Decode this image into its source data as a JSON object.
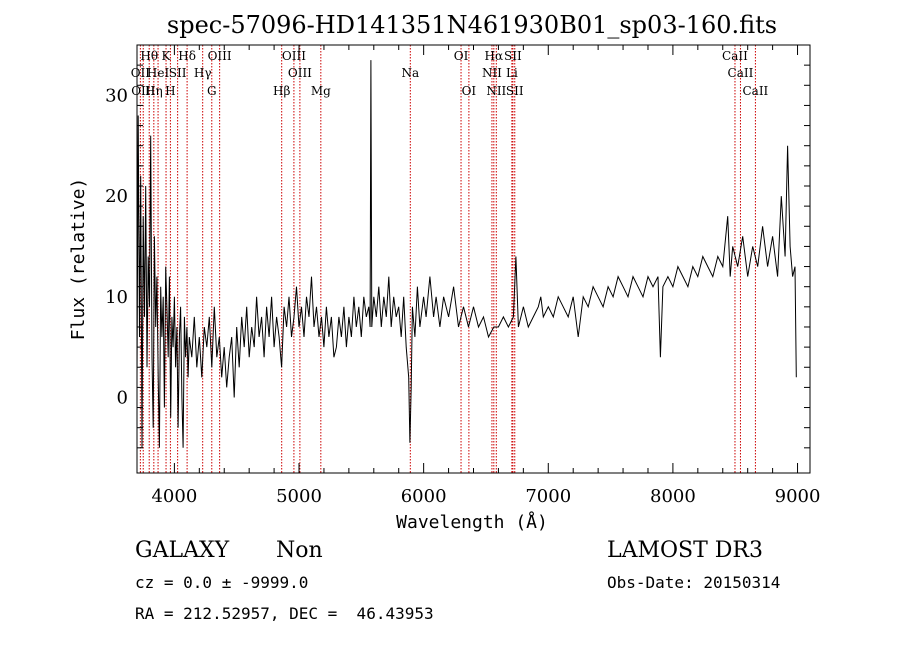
{
  "chart_data": {
    "type": "line",
    "title": "spec-57096-HD141351N461930B01_sp03-160.fits",
    "xlabel": "Wavelength (Å)",
    "ylabel": "Flux (relative)",
    "xlim": [
      3700,
      9100
    ],
    "ylim": [
      -7.5,
      35
    ],
    "xticks": [
      4000,
      5000,
      6000,
      7000,
      8000,
      9000
    ],
    "yticks": [
      0,
      10,
      20,
      30
    ],
    "series": [
      {
        "points": [
          [
            3700,
            2
          ],
          [
            3710,
            28
          ],
          [
            3720,
            6
          ],
          [
            3730,
            22
          ],
          [
            3740,
            -5
          ],
          [
            3750,
            18
          ],
          [
            3760,
            8
          ],
          [
            3770,
            21
          ],
          [
            3780,
            3
          ],
          [
            3790,
            14
          ],
          [
            3800,
            9
          ],
          [
            3810,
            26
          ],
          [
            3820,
            4
          ],
          [
            3830,
            -3
          ],
          [
            3840,
            16
          ],
          [
            3850,
            7
          ],
          [
            3860,
            12
          ],
          [
            3870,
            2
          ],
          [
            3880,
            -5
          ],
          [
            3890,
            11
          ],
          [
            3900,
            6
          ],
          [
            3910,
            10
          ],
          [
            3920,
            -1
          ],
          [
            3930,
            13
          ],
          [
            3940,
            9
          ],
          [
            3950,
            4
          ],
          [
            3960,
            12
          ],
          [
            3970,
            -2
          ],
          [
            3980,
            8
          ],
          [
            3990,
            5
          ],
          [
            4000,
            10
          ],
          [
            4010,
            3
          ],
          [
            4020,
            7
          ],
          [
            4030,
            -3
          ],
          [
            4040,
            6
          ],
          [
            4050,
            9
          ],
          [
            4060,
            0
          ],
          [
            4070,
            -5
          ],
          [
            4080,
            8
          ],
          [
            4090,
            4
          ],
          [
            4100,
            7
          ],
          [
            4110,
            2
          ],
          [
            4120,
            6
          ],
          [
            4140,
            4
          ],
          [
            4160,
            8
          ],
          [
            4180,
            3
          ],
          [
            4200,
            6
          ],
          [
            4220,
            2
          ],
          [
            4240,
            7
          ],
          [
            4260,
            5
          ],
          [
            4280,
            8
          ],
          [
            4300,
            3
          ],
          [
            4320,
            9
          ],
          [
            4340,
            4
          ],
          [
            4360,
            6
          ],
          [
            4380,
            2
          ],
          [
            4400,
            5
          ],
          [
            4420,
            1
          ],
          [
            4440,
            4
          ],
          [
            4460,
            6
          ],
          [
            4480,
            0
          ],
          [
            4500,
            7
          ],
          [
            4520,
            3
          ],
          [
            4540,
            8
          ],
          [
            4560,
            5
          ],
          [
            4580,
            9
          ],
          [
            4600,
            4
          ],
          [
            4620,
            7
          ],
          [
            4640,
            5
          ],
          [
            4660,
            10
          ],
          [
            4680,
            6
          ],
          [
            4700,
            8
          ],
          [
            4720,
            4
          ],
          [
            4740,
            9
          ],
          [
            4760,
            6
          ],
          [
            4780,
            10
          ],
          [
            4800,
            5
          ],
          [
            4820,
            8
          ],
          [
            4840,
            6
          ],
          [
            4860,
            3
          ],
          [
            4880,
            9
          ],
          [
            4900,
            7
          ],
          [
            4920,
            10
          ],
          [
            4940,
            6
          ],
          [
            4960,
            8
          ],
          [
            4980,
            11
          ],
          [
            5000,
            7
          ],
          [
            5020,
            9
          ],
          [
            5040,
            6
          ],
          [
            5060,
            10
          ],
          [
            5080,
            8
          ],
          [
            5100,
            12
          ],
          [
            5120,
            7
          ],
          [
            5140,
            9
          ],
          [
            5160,
            6
          ],
          [
            5180,
            8
          ],
          [
            5200,
            5
          ],
          [
            5220,
            9
          ],
          [
            5240,
            6
          ],
          [
            5260,
            8
          ],
          [
            5280,
            4
          ],
          [
            5300,
            5
          ],
          [
            5320,
            8
          ],
          [
            5340,
            6
          ],
          [
            5360,
            9
          ],
          [
            5380,
            5
          ],
          [
            5400,
            8
          ],
          [
            5420,
            6
          ],
          [
            5440,
            10
          ],
          [
            5460,
            7
          ],
          [
            5480,
            9
          ],
          [
            5500,
            6
          ],
          [
            5520,
            10
          ],
          [
            5540,
            8
          ],
          [
            5560,
            9
          ],
          [
            5570,
            7
          ],
          [
            5577,
            33.5
          ],
          [
            5584,
            7
          ],
          [
            5600,
            10
          ],
          [
            5620,
            8
          ],
          [
            5640,
            11
          ],
          [
            5660,
            7
          ],
          [
            5680,
            10
          ],
          [
            5700,
            8
          ],
          [
            5720,
            12
          ],
          [
            5740,
            7
          ],
          [
            5760,
            10
          ],
          [
            5780,
            8
          ],
          [
            5800,
            9
          ],
          [
            5820,
            6
          ],
          [
            5840,
            10
          ],
          [
            5860,
            5
          ],
          [
            5880,
            2
          ],
          [
            5890,
            -4.5
          ],
          [
            5900,
            1
          ],
          [
            5910,
            9
          ],
          [
            5930,
            6
          ],
          [
            5950,
            11
          ],
          [
            5970,
            7
          ],
          [
            6000,
            10
          ],
          [
            6020,
            8
          ],
          [
            6050,
            12
          ],
          [
            6080,
            8
          ],
          [
            6100,
            10
          ],
          [
            6130,
            7
          ],
          [
            6160,
            10
          ],
          [
            6200,
            8
          ],
          [
            6240,
            11
          ],
          [
            6280,
            7
          ],
          [
            6320,
            9
          ],
          [
            6360,
            7
          ],
          [
            6400,
            9
          ],
          [
            6440,
            7
          ],
          [
            6480,
            8
          ],
          [
            6520,
            6
          ],
          [
            6563,
            7
          ],
          [
            6600,
            7
          ],
          [
            6640,
            8
          ],
          [
            6680,
            7
          ],
          [
            6720,
            8
          ],
          [
            6740,
            14
          ],
          [
            6760,
            7
          ],
          [
            6800,
            9
          ],
          [
            6840,
            7
          ],
          [
            6880,
            8
          ],
          [
            6920,
            9
          ],
          [
            6940,
            10
          ],
          [
            6960,
            8
          ],
          [
            7000,
            9
          ],
          [
            7040,
            8
          ],
          [
            7080,
            10
          ],
          [
            7120,
            9
          ],
          [
            7160,
            8
          ],
          [
            7200,
            10
          ],
          [
            7240,
            6
          ],
          [
            7280,
            10
          ],
          [
            7320,
            9
          ],
          [
            7360,
            11
          ],
          [
            7400,
            10
          ],
          [
            7440,
            9
          ],
          [
            7480,
            11
          ],
          [
            7520,
            10
          ],
          [
            7560,
            12
          ],
          [
            7600,
            11
          ],
          [
            7640,
            10
          ],
          [
            7680,
            12
          ],
          [
            7720,
            11
          ],
          [
            7760,
            10
          ],
          [
            7800,
            12
          ],
          [
            7840,
            11
          ],
          [
            7880,
            12
          ],
          [
            7900,
            4
          ],
          [
            7920,
            11
          ],
          [
            7960,
            12
          ],
          [
            8000,
            11
          ],
          [
            8040,
            13
          ],
          [
            8080,
            12
          ],
          [
            8120,
            11
          ],
          [
            8160,
            13
          ],
          [
            8200,
            12
          ],
          [
            8240,
            14
          ],
          [
            8280,
            13
          ],
          [
            8320,
            12
          ],
          [
            8360,
            14
          ],
          [
            8400,
            13
          ],
          [
            8440,
            18
          ],
          [
            8460,
            12
          ],
          [
            8480,
            15
          ],
          [
            8520,
            13
          ],
          [
            8560,
            16
          ],
          [
            8600,
            12
          ],
          [
            8640,
            15
          ],
          [
            8680,
            13
          ],
          [
            8720,
            17
          ],
          [
            8760,
            13
          ],
          [
            8800,
            16
          ],
          [
            8840,
            12
          ],
          [
            8870,
            20
          ],
          [
            8900,
            14
          ],
          [
            8920,
            25
          ],
          [
            8940,
            15
          ],
          [
            8960,
            12
          ],
          [
            8980,
            13
          ],
          [
            8990,
            2
          ]
        ]
      }
    ],
    "lines": [
      {
        "x": 3727,
        "label": "OII",
        "row": 1
      },
      {
        "x": 3750,
        "label": "OIII",
        "row": 2
      },
      {
        "x": 3798,
        "label": "Hθ",
        "row": 0
      },
      {
        "x": 3835,
        "label": "Hη",
        "row": 2
      },
      {
        "x": 3869,
        "label": "HeI",
        "row": 1
      },
      {
        "x": 3933,
        "label": "K",
        "row": 0
      },
      {
        "x": 3968,
        "label": "H",
        "row": 2
      },
      {
        "x": 4026,
        "label": "SII",
        "row": 1
      },
      {
        "x": 4102,
        "label": "Hδ",
        "row": 0
      },
      {
        "x": 4227,
        "label": "Hγ",
        "row": 1
      },
      {
        "x": 4300,
        "label": "G",
        "row": 2
      },
      {
        "x": 4363,
        "label": "OIII",
        "row": 0
      },
      {
        "x": 4861,
        "label": "Hβ",
        "row": 2
      },
      {
        "x": 4959,
        "label": "OIII",
        "row": 0
      },
      {
        "x": 5007,
        "label": "OIII",
        "row": 1
      },
      {
        "x": 5175,
        "label": "Mg",
        "row": 2
      },
      {
        "x": 5893,
        "label": "Na",
        "row": 1
      },
      {
        "x": 6300,
        "label": "OI",
        "row": 0
      },
      {
        "x": 6363,
        "label": "OI",
        "row": 2
      },
      {
        "x": 6548,
        "label": "NII",
        "row": 1
      },
      {
        "x": 6563,
        "label": "Hα",
        "row": 0
      },
      {
        "x": 6583,
        "label": "NII",
        "row": 2
      },
      {
        "x": 6708,
        "label": "Li",
        "row": 1
      },
      {
        "x": 6716,
        "label": "SII",
        "row": 0
      },
      {
        "x": 6731,
        "label": "SII",
        "row": 2
      },
      {
        "x": 8498,
        "label": "CaII",
        "row": 0
      },
      {
        "x": 8542,
        "label": "CaII",
        "row": 1
      },
      {
        "x": 8662,
        "label": "CaII",
        "row": 2
      }
    ],
    "grid": false,
    "line_color": "#000000",
    "marker_color": "#cc0000"
  },
  "info": {
    "class": "GALAXY",
    "subclass": "Non",
    "survey": "LAMOST DR3",
    "cz": "cz = 0.0 ± -9999.0",
    "obs_date": "Obs-Date: 20150314",
    "coords": "RA = 212.52957, DEC =  46.43953"
  }
}
